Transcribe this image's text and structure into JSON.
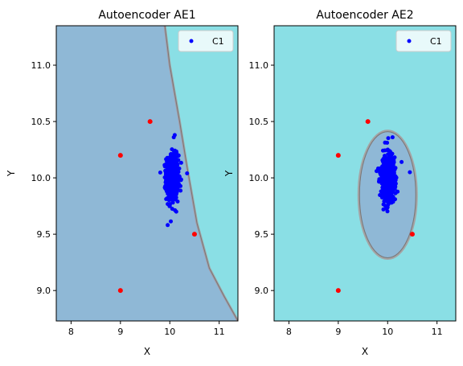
{
  "chart_data": [
    {
      "type": "scatter",
      "title": "Autoencoder AE1",
      "xlabel": "X",
      "ylabel": "Y",
      "xlim": [
        7.7,
        11.38
      ],
      "ylim": [
        8.73,
        11.35
      ],
      "xticks": [
        8,
        9,
        10,
        11
      ],
      "yticks": [
        9.0,
        9.5,
        10.0,
        10.5,
        11.0
      ],
      "xtick_labels": [
        "8",
        "9",
        "10",
        "11"
      ],
      "ytick_labels": [
        "9.0",
        "9.5",
        "10.0",
        "10.5",
        "11.0"
      ],
      "legend": {
        "entries": [
          "C1"
        ],
        "position": "top-right"
      },
      "region": {
        "shape": "half-plane",
        "boundary": [
          [
            9.9,
            11.35
          ],
          [
            10.0,
            11.0
          ],
          [
            10.2,
            10.5
          ],
          [
            10.35,
            10.1
          ],
          [
            10.55,
            9.6
          ],
          [
            10.8,
            9.2
          ],
          [
            11.1,
            8.95
          ],
          [
            11.38,
            8.73
          ]
        ],
        "inside_color": "#8fb8d6",
        "outside_color": "#8adfe5"
      },
      "series": [
        {
          "name": "C1",
          "color": "#0000ff",
          "cluster": {
            "cx": 10.05,
            "cy": 10.0,
            "sx": 0.06,
            "sy": 0.1,
            "n": 700
          }
        },
        {
          "color": "#ff0000",
          "points": [
            [
              9.6,
              10.5
            ],
            [
              9.0,
              10.2
            ],
            [
              10.5,
              9.5
            ],
            [
              9.0,
              9.0
            ]
          ]
        }
      ],
      "extra_points": [
        [
          10.1,
          10.38
        ],
        [
          10.08,
          10.36
        ],
        [
          10.35,
          10.04
        ],
        [
          10.0,
          9.75
        ]
      ]
    },
    {
      "type": "scatter",
      "title": "Autoencoder AE2",
      "xlabel": "X",
      "ylabel": "Y",
      "xlim": [
        7.7,
        11.38
      ],
      "ylim": [
        8.73,
        11.35
      ],
      "xticks": [
        8,
        9,
        10,
        11
      ],
      "yticks": [
        9.0,
        9.5,
        10.0,
        10.5,
        11.0
      ],
      "xtick_labels": [
        "8",
        "9",
        "10",
        "11"
      ],
      "ytick_labels": [
        "9.0",
        "9.5",
        "10.0",
        "10.5",
        "11.0"
      ],
      "legend": {
        "entries": [
          "C1"
        ],
        "position": "top-right"
      },
      "region": {
        "shape": "ellipse",
        "center": [
          10.0,
          9.85
        ],
        "rx": 0.57,
        "ry": 0.56,
        "inside_color": "#8fb8d6",
        "outside_color": "#8adfe5"
      },
      "series": [
        {
          "name": "C1",
          "color": "#0000ff",
          "cluster": {
            "cx": 10.0,
            "cy": 10.0,
            "sx": 0.07,
            "sy": 0.1,
            "n": 700
          }
        },
        {
          "color": "#ff0000",
          "points": [
            [
              9.6,
              10.5
            ],
            [
              9.0,
              10.2
            ],
            [
              10.5,
              9.5
            ],
            [
              9.0,
              9.0
            ]
          ]
        }
      ],
      "extra_points": [
        [
          10.1,
          10.36
        ],
        [
          10.45,
          10.05
        ],
        [
          10.0,
          9.74
        ]
      ]
    }
  ]
}
